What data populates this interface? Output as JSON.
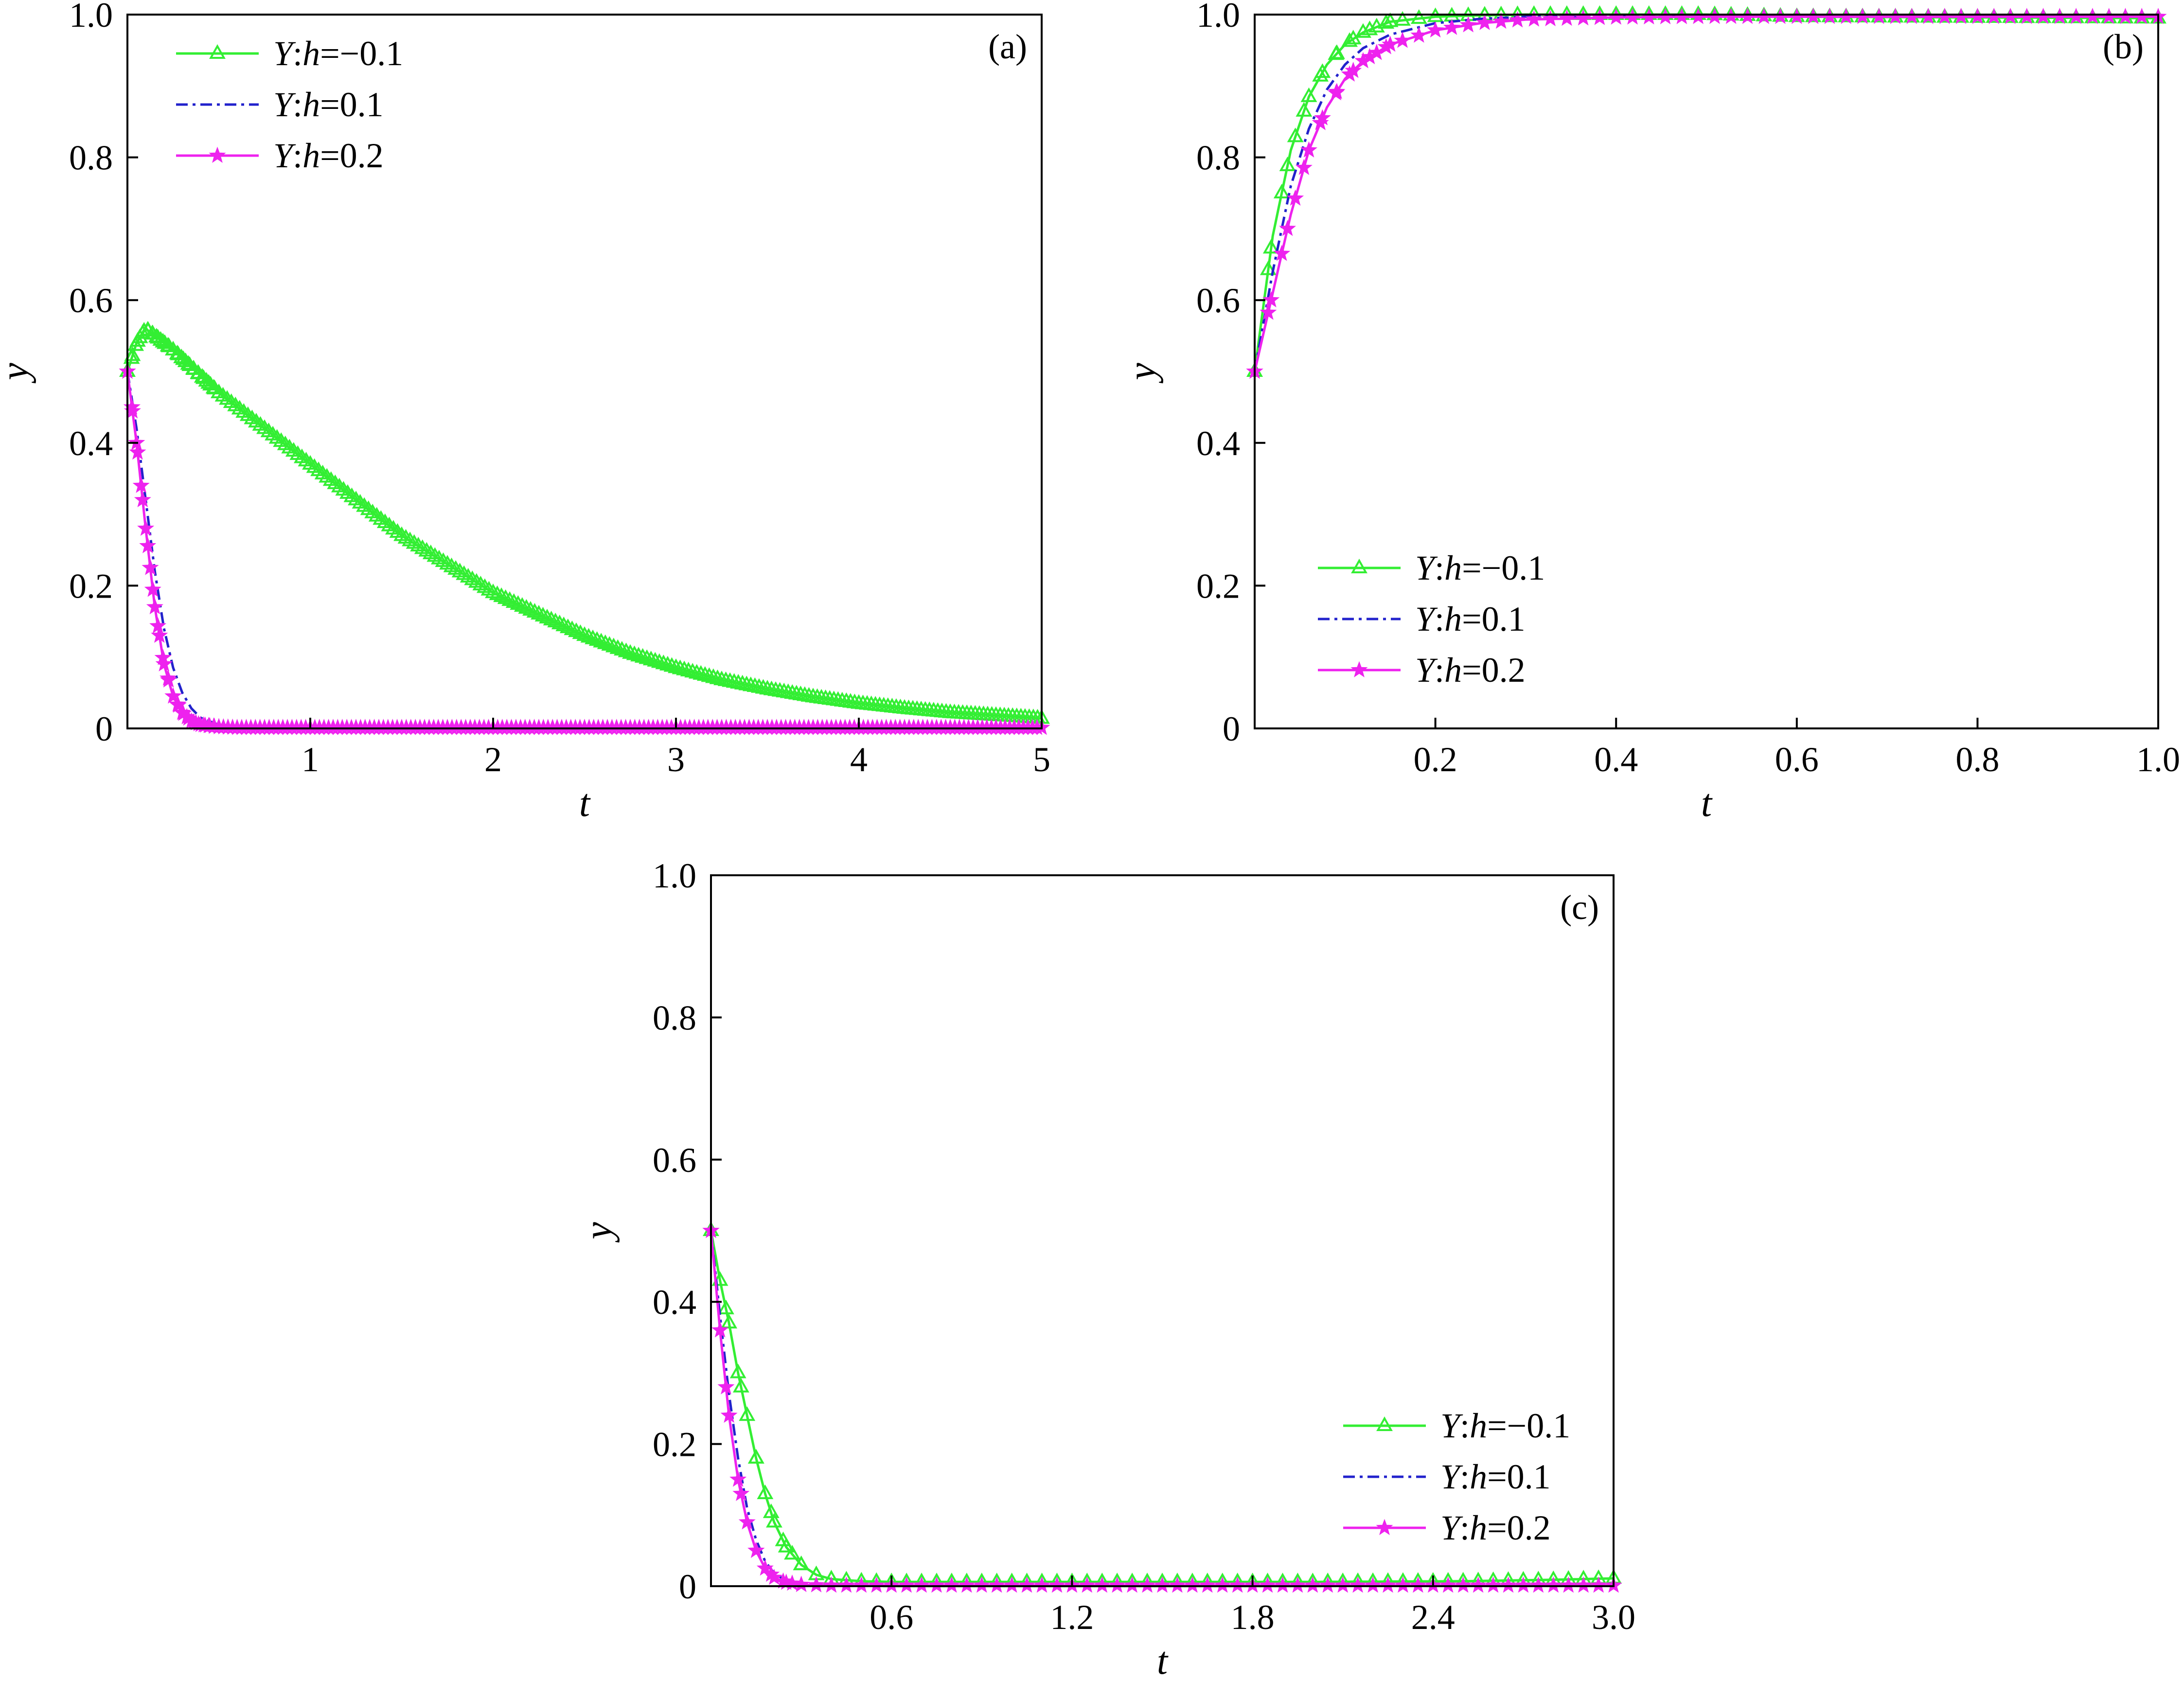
{
  "figure": {
    "series_styles": [
      {
        "color": "#33ee33",
        "marker": "triangle-open",
        "dash": ""
      },
      {
        "color": "#2222cc",
        "marker": "none",
        "dash": "24,10,6,10"
      },
      {
        "color": "#ee22ee",
        "marker": "star-filled",
        "dash": ""
      }
    ]
  },
  "chart_data": [
    {
      "type": "line",
      "panel_label": "(a)",
      "xlabel": "t",
      "ylabel": "y",
      "xlim": [
        0,
        5
      ],
      "ylim": [
        0,
        1.0
      ],
      "xticks": [
        1,
        2,
        3,
        4,
        5
      ],
      "xtick_labels": [
        "1",
        "2",
        "3",
        "4",
        "5"
      ],
      "yticks": [
        0,
        0.2,
        0.4,
        0.6,
        0.8,
        1.0
      ],
      "ytick_labels": [
        "0",
        "0.2",
        "0.4",
        "0.6",
        "0.8",
        "1.0"
      ],
      "grid": false,
      "legend_position": "top-left",
      "series": [
        {
          "name": "Y:h=−0.1",
          "legend_parts": [
            "Y",
            ":",
            "h",
            "=−0.1"
          ],
          "x": [
            0,
            0.05,
            0.1,
            0.25,
            0.5,
            0.75,
            1.0,
            1.25,
            1.5,
            1.75,
            2.0,
            2.25,
            2.5,
            2.75,
            3.0,
            3.25,
            3.5,
            3.75,
            4.0,
            4.25,
            4.5,
            4.75,
            5.0
          ],
          "y": [
            0.5,
            0.54,
            0.56,
            0.53,
            0.47,
            0.42,
            0.37,
            0.32,
            0.27,
            0.23,
            0.19,
            0.16,
            0.13,
            0.105,
            0.085,
            0.068,
            0.055,
            0.044,
            0.035,
            0.028,
            0.022,
            0.018,
            0.014
          ]
        },
        {
          "name": "Y:h=0.1",
          "legend_parts": [
            "Y",
            ":",
            "h",
            "=0.1"
          ],
          "x": [
            0,
            0.05,
            0.1,
            0.15,
            0.2,
            0.25,
            0.3,
            0.35,
            0.4,
            0.5,
            0.6,
            0.8,
            1.0,
            2.0,
            3.0,
            4.0,
            5.0
          ],
          "y": [
            0.5,
            0.42,
            0.32,
            0.22,
            0.14,
            0.085,
            0.05,
            0.028,
            0.015,
            0.005,
            0.002,
            0.001,
            0.001,
            0.001,
            0.001,
            0.001,
            0.001
          ]
        },
        {
          "name": "Y:h=0.2",
          "legend_parts": [
            "Y",
            ":",
            "h",
            "=0.2"
          ],
          "x": [
            0,
            0.05,
            0.1,
            0.15,
            0.2,
            0.25,
            0.3,
            0.35,
            0.4,
            0.5,
            0.6,
            0.8,
            1.0,
            2.0,
            3.0,
            4.0,
            5.0
          ],
          "y": [
            0.5,
            0.4,
            0.28,
            0.17,
            0.09,
            0.045,
            0.022,
            0.01,
            0.005,
            0.002,
            0.001,
            0.001,
            0.001,
            0.001,
            0.001,
            0.001,
            0.001
          ]
        }
      ]
    },
    {
      "type": "line",
      "panel_label": "(b)",
      "xlabel": "t",
      "ylabel": "y",
      "xlim": [
        0,
        1.0
      ],
      "ylim": [
        0,
        1.0
      ],
      "xticks": [
        0.2,
        0.4,
        0.6,
        0.8,
        1.0
      ],
      "xtick_labels": [
        "0.2",
        "0.4",
        "0.6",
        "0.8",
        "1.0"
      ],
      "yticks": [
        0,
        0.2,
        0.4,
        0.6,
        0.8,
        1.0
      ],
      "ytick_labels": [
        "0",
        "0.2",
        "0.4",
        "0.6",
        "0.8",
        "1.0"
      ],
      "grid": false,
      "legend_position": "bottom-left",
      "series": [
        {
          "name": "Y:h=−0.1",
          "legend_parts": [
            "Y",
            ":",
            "h",
            "=−0.1"
          ],
          "x": [
            0,
            0.02,
            0.04,
            0.06,
            0.08,
            0.1,
            0.12,
            0.15,
            0.2,
            0.25,
            0.3,
            0.4,
            0.5,
            0.6,
            0.8,
            1.0
          ],
          "y": [
            0.5,
            0.69,
            0.81,
            0.885,
            0.93,
            0.958,
            0.975,
            0.99,
            0.997,
            0.999,
            1.0,
            1.0,
            1.0,
            0.997,
            0.996,
            0.995
          ]
        },
        {
          "name": "Y:h=0.1",
          "legend_parts": [
            "Y",
            ":",
            "h",
            "=0.1"
          ],
          "x": [
            0,
            0.02,
            0.04,
            0.06,
            0.08,
            0.1,
            0.12,
            0.15,
            0.2,
            0.25,
            0.3,
            0.4,
            0.5,
            0.6,
            0.8,
            1.0
          ],
          "y": [
            0.5,
            0.64,
            0.76,
            0.84,
            0.895,
            0.93,
            0.953,
            0.972,
            0.988,
            0.994,
            0.997,
            0.998,
            0.998,
            0.998,
            0.998,
            0.998
          ]
        },
        {
          "name": "Y:h=0.2",
          "legend_parts": [
            "Y",
            ":",
            "h",
            "=0.2"
          ],
          "x": [
            0,
            0.02,
            0.04,
            0.06,
            0.08,
            0.1,
            0.12,
            0.15,
            0.2,
            0.25,
            0.3,
            0.4,
            0.5,
            0.6,
            0.8,
            1.0
          ],
          "y": [
            0.5,
            0.61,
            0.72,
            0.81,
            0.87,
            0.91,
            0.935,
            0.958,
            0.978,
            0.988,
            0.993,
            0.996,
            0.997,
            0.997,
            0.997,
            0.997
          ]
        }
      ]
    },
    {
      "type": "line",
      "panel_label": "(c)",
      "xlabel": "t",
      "ylabel": "y",
      "xlim": [
        0,
        3.0
      ],
      "ylim": [
        0,
        1.0
      ],
      "xticks": [
        0.6,
        1.2,
        1.8,
        2.4,
        3.0
      ],
      "xtick_labels": [
        "0.6",
        "1.2",
        "1.8",
        "2.4",
        "3.0"
      ],
      "yticks": [
        0,
        0.2,
        0.4,
        0.6,
        0.8,
        1.0
      ],
      "ytick_labels": [
        "0",
        "0.2",
        "0.4",
        "0.6",
        "0.8",
        "1.0"
      ],
      "grid": false,
      "legend_position": "bottom-right",
      "series": [
        {
          "name": "Y:h=−0.1",
          "legend_parts": [
            "Y",
            ":",
            "h",
            "=−0.1"
          ],
          "x": [
            0,
            0.03,
            0.06,
            0.09,
            0.12,
            0.15,
            0.18,
            0.21,
            0.25,
            0.3,
            0.35,
            0.4,
            0.5,
            0.6,
            0.8,
            1.0,
            1.5,
            2.0,
            2.5,
            2.8,
            3.0
          ],
          "y": [
            0.5,
            0.43,
            0.37,
            0.3,
            0.24,
            0.18,
            0.13,
            0.09,
            0.055,
            0.03,
            0.016,
            0.01,
            0.007,
            0.006,
            0.006,
            0.006,
            0.006,
            0.006,
            0.007,
            0.009,
            0.011
          ]
        },
        {
          "name": "Y:h=0.1",
          "legend_parts": [
            "Y",
            ":",
            "h",
            "=0.1"
          ],
          "x": [
            0,
            0.03,
            0.06,
            0.09,
            0.12,
            0.15,
            0.18,
            0.21,
            0.25,
            0.3,
            0.4,
            0.5,
            1.0,
            2.0,
            3.0
          ],
          "y": [
            0.5,
            0.38,
            0.27,
            0.18,
            0.11,
            0.065,
            0.035,
            0.018,
            0.008,
            0.003,
            0.001,
            0.001,
            0.001,
            0.001,
            0.001
          ]
        },
        {
          "name": "Y:h=0.2",
          "legend_parts": [
            "Y",
            ":",
            "h",
            "=0.2"
          ],
          "x": [
            0,
            0.03,
            0.06,
            0.09,
            0.12,
            0.15,
            0.18,
            0.21,
            0.25,
            0.3,
            0.4,
            0.5,
            1.0,
            2.0,
            3.0
          ],
          "y": [
            0.5,
            0.36,
            0.24,
            0.15,
            0.09,
            0.05,
            0.025,
            0.012,
            0.005,
            0.002,
            0.001,
            0.001,
            0.001,
            0.001,
            0.001
          ]
        }
      ]
    }
  ]
}
